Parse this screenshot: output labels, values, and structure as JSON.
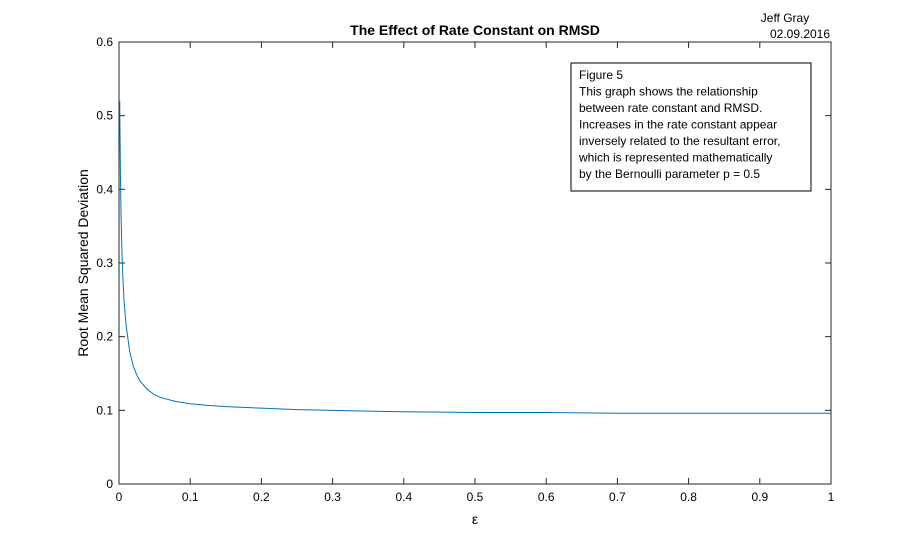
{
  "author": "Jeff Gray",
  "date": "02.09.2016",
  "annotation": {
    "lines": [
      "Figure 5",
      "This graph shows the relationship",
      "between rate constant and RMSD.",
      "Increases in the rate constant appear",
      "inversely related to the resultant error,",
      "which is represented mathematically",
      "by the Bernoulli parameter p = 0.5"
    ]
  },
  "colors": {
    "line": "#0072BD",
    "axis": "#262626",
    "text": "#000000"
  },
  "chart_data": {
    "type": "line",
    "title": "The Effect of Rate Constant on RMSD",
    "xlabel": "ε",
    "ylabel": "Root Mean Squared Deviation",
    "xlim": [
      0,
      1
    ],
    "ylim": [
      0,
      0.6
    ],
    "xticks": [
      0,
      0.1,
      0.2,
      0.3,
      0.4,
      0.5,
      0.6,
      0.7,
      0.8,
      0.9,
      1
    ],
    "xtick_labels": [
      "0",
      "0.1",
      "0.2",
      "0.3",
      "0.4",
      "0.5",
      "0.6",
      "0.7",
      "0.8",
      "0.9",
      "1"
    ],
    "yticks": [
      0,
      0.1,
      0.2,
      0.3,
      0.4,
      0.5,
      0.6
    ],
    "ytick_labels": [
      "0",
      "0.1",
      "0.2",
      "0.3",
      "0.4",
      "0.5",
      "0.6"
    ],
    "grid": false,
    "series": [
      {
        "x": [
          0.001,
          0.002,
          0.003,
          0.004,
          0.005,
          0.007,
          0.01,
          0.015,
          0.02,
          0.025,
          0.03,
          0.04,
          0.05,
          0.06,
          0.08,
          0.1,
          0.12,
          0.15,
          0.2,
          0.25,
          0.3,
          0.35,
          0.4,
          0.5,
          0.6,
          0.7,
          0.8,
          0.9,
          1.0
        ],
        "y": [
          0.52,
          0.42,
          0.36,
          0.32,
          0.29,
          0.25,
          0.215,
          0.18,
          0.16,
          0.148,
          0.139,
          0.128,
          0.121,
          0.117,
          0.112,
          0.109,
          0.107,
          0.105,
          0.103,
          0.101,
          0.1,
          0.099,
          0.098,
          0.097,
          0.097,
          0.096,
          0.096,
          0.096,
          0.096
        ]
      }
    ]
  }
}
